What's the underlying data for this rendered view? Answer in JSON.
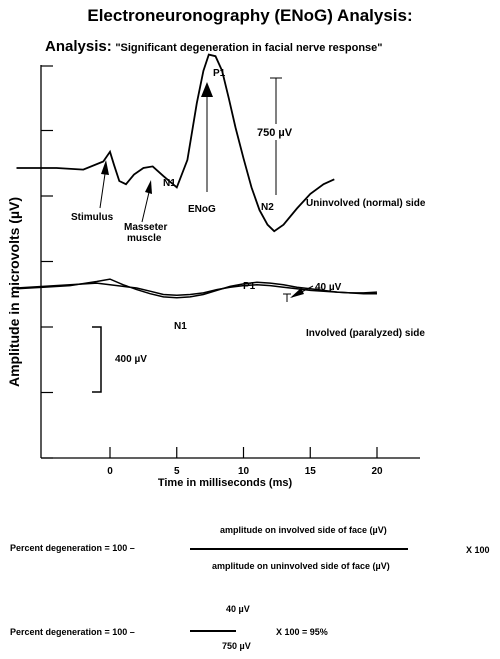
{
  "title": "Electroneuronography (ENoG) Analysis:",
  "analysis_label": "Analysis:",
  "analysis_text": "\"Significant degeneration in facial nerve response\"",
  "chart_data": {
    "type": "line",
    "xlabel": "Time in milliseconds (ms)",
    "ylabel": "Amplitude in microvolts (µV)",
    "x_ticks": [
      0,
      5,
      10,
      15,
      20
    ],
    "xlim": [
      -7,
      23
    ],
    "scale_bar": "400 µV",
    "series": [
      {
        "name": "Uninvolved (normal) side",
        "x": [
          -7,
          -4,
          -2,
          -0.5,
          0,
          0.3,
          0.7,
          1.2,
          1.8,
          2.5,
          3.2,
          4,
          5,
          5.8,
          6.5,
          7,
          7.4,
          7.9,
          8.4,
          8.9,
          9.4,
          10,
          10.6,
          11.2,
          11.8,
          12.3,
          13,
          14,
          15,
          16,
          16.8
        ],
        "y": [
          0,
          0,
          -10,
          40,
          100,
          20,
          -80,
          -100,
          -40,
          0,
          10,
          -50,
          -120,
          50,
          400,
          600,
          700,
          690,
          600,
          430,
          250,
          60,
          -120,
          -260,
          -350,
          -390,
          -350,
          -250,
          -160,
          -100,
          -70
        ]
      },
      {
        "name": "Involved (paralyzed) side",
        "x": [
          -7,
          -5,
          -3,
          -1,
          0,
          1,
          2,
          3,
          4,
          5,
          6,
          7,
          8,
          9,
          10,
          11,
          12,
          13,
          14,
          15,
          16,
          17,
          18,
          19,
          20
        ],
        "y": [
          0,
          10,
          20,
          30,
          20,
          10,
          0,
          -20,
          -40,
          -45,
          -40,
          -30,
          -10,
          5,
          15,
          20,
          15,
          5,
          -5,
          -15,
          -20,
          -25,
          -30,
          -30,
          -25
        ]
      },
      {
        "name": "",
        "x": [
          -7,
          -5,
          -3,
          -1,
          0,
          1,
          2,
          3,
          4,
          5,
          6,
          7,
          8,
          9,
          10,
          11,
          12,
          13,
          14,
          15,
          16,
          17,
          18,
          19,
          20
        ],
        "y": [
          -5,
          5,
          15,
          40,
          55,
          20,
          -10,
          -35,
          -55,
          -60,
          -55,
          -40,
          -15,
          10,
          25,
          35,
          30,
          20,
          5,
          -5,
          -15,
          -25,
          -30,
          -35,
          -35
        ]
      }
    ],
    "annotations": {
      "normal": {
        "p1": "P1",
        "n1": "N1",
        "n2": "N2",
        "amp": "750 µV",
        "stimulus": "Stimulus",
        "masseter": "Masseter\nmuscle",
        "enog": "ENoG",
        "side": "Uninvolved (normal) side"
      },
      "involved": {
        "p1": "P1",
        "n1": "N1",
        "amp": "40 µV",
        "side": "Involved (paralyzed) side"
      }
    }
  },
  "formula1": {
    "left": "Percent degeneration = 100 –",
    "numerator": "amplitude on involved side of face  (µV)",
    "denominator": "amplitude on uninvolved side of face  (µV)",
    "mult": "X 100"
  },
  "formula2": {
    "left": "Percent degeneration = 100 –",
    "numerator": "40 µV",
    "denominator": "750 µV",
    "result": "X 100 =  95%"
  }
}
